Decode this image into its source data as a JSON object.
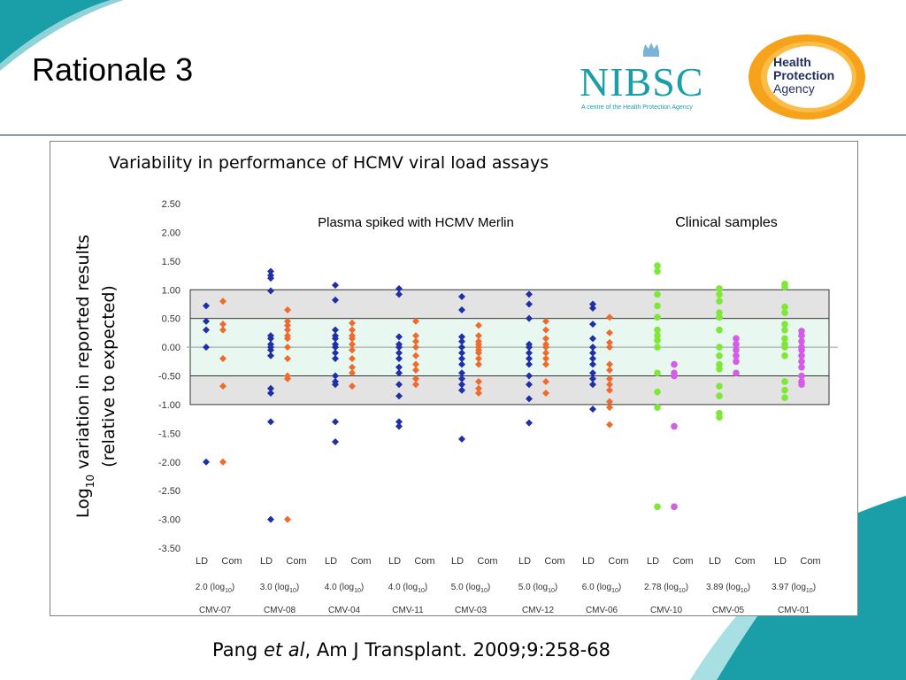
{
  "slide": {
    "title": "Rationale 3",
    "citation_author": "Pang ",
    "citation_etal": "et al",
    "citation_rest": ", Am J Transplant. 2009;9:258-68"
  },
  "logos": {
    "nibsc_text": "NIBSC",
    "nibsc_sub": "A centre of the Health Protection Agency",
    "hpa_line1": "Health",
    "hpa_line2": "Protection",
    "hpa_line3": "Agency"
  },
  "colors": {
    "header_rule": "#1f2d5c",
    "ld": "#1f2fa8",
    "com": "#ef6a2b",
    "clinical_ld": "#7de835",
    "clinical_com": "#d45ce6",
    "inner_band": "#e8f8f1",
    "outer_band": "#e3e3e3",
    "teal": "#1a9ea8",
    "hpa_orange": "#f7a21b"
  },
  "chart_data": {
    "type": "scatter",
    "title": "Variability in performance of HCMV viral load assays",
    "ylabel_main": "variation in reported results",
    "ylabel_log": "Log",
    "ylabel_sub": "10",
    "ylabel_line2": "(relative to expected)",
    "ylim": [
      -3.5,
      2.5
    ],
    "yticks": [
      "2.50",
      "2.00",
      "1.50",
      "1.00",
      "0.50",
      "0.00",
      "-0.50",
      "-1.00",
      "-1.50",
      "-2.00",
      "-2.50",
      "-3.00",
      "-3.50"
    ],
    "bands": {
      "outer": [
        -1.0,
        1.0
      ],
      "inner": [
        -0.5,
        0.5
      ]
    },
    "section_labels": [
      "Plasma spiked with HCMV Merlin",
      "Clinical samples"
    ],
    "sample_row_labels": [
      "LD",
      "Com"
    ],
    "groups": [
      {
        "name": "CMV-07",
        "level": "2.0",
        "type": "spiked",
        "LD": [
          0.72,
          0.45,
          0.3,
          0.0,
          -2.0
        ],
        "Com": [
          0.8,
          0.4,
          0.3,
          -0.2,
          -0.68,
          -2.0
        ]
      },
      {
        "name": "CMV-08",
        "level": "3.0",
        "type": "spiked",
        "LD": [
          1.32,
          1.25,
          1.2,
          0.98,
          0.2,
          0.15,
          0.05,
          0.0,
          -0.05,
          -0.15,
          -0.72,
          -0.8,
          -1.3,
          -3.0
        ],
        "Com": [
          0.65,
          0.45,
          0.38,
          0.3,
          0.2,
          0.15,
          0.0,
          -0.2,
          -0.5,
          -0.55,
          -3.0
        ]
      },
      {
        "name": "CMV-04",
        "level": "4.0",
        "type": "spiked",
        "LD": [
          1.08,
          0.82,
          0.3,
          0.2,
          0.15,
          0.05,
          0.0,
          -0.1,
          -0.2,
          -0.5,
          -0.6,
          -0.65,
          -1.3,
          -1.65
        ],
        "Com": [
          0.42,
          0.3,
          0.2,
          0.15,
          0.05,
          -0.05,
          -0.2,
          -0.35,
          -0.45,
          -0.68
        ]
      },
      {
        "name": "CMV-11",
        "level": "4.0",
        "type": "spiked",
        "LD": [
          1.02,
          0.92,
          0.18,
          0.05,
          0.0,
          -0.1,
          -0.2,
          -0.35,
          -0.45,
          -0.65,
          -0.85,
          -1.3,
          -1.38
        ],
        "Com": [
          0.45,
          0.2,
          0.1,
          0.0,
          -0.15,
          -0.3,
          -0.4,
          -0.55,
          -0.65
        ]
      },
      {
        "name": "CMV-03",
        "level": "5.0",
        "type": "spiked",
        "LD": [
          0.88,
          0.65,
          0.18,
          0.1,
          0.0,
          -0.1,
          -0.2,
          -0.3,
          -0.45,
          -0.55,
          -0.65,
          -0.75,
          -1.6
        ],
        "Com": [
          0.38,
          0.2,
          0.1,
          0.05,
          0.0,
          -0.05,
          -0.1,
          -0.2,
          -0.3,
          -0.6,
          -0.72,
          -0.8
        ]
      },
      {
        "name": "CMV-12",
        "level": "5.0",
        "type": "spiked",
        "LD": [
          0.92,
          0.75,
          0.5,
          0.05,
          0.0,
          -0.1,
          -0.2,
          -0.3,
          -0.5,
          -0.65,
          -0.9,
          -1.32
        ],
        "Com": [
          0.45,
          0.3,
          0.15,
          0.05,
          0.0,
          -0.1,
          -0.2,
          -0.3,
          -0.6,
          -0.8
        ]
      },
      {
        "name": "CMV-06",
        "level": "6.0",
        "type": "spiked",
        "LD": [
          0.75,
          0.68,
          0.4,
          0.15,
          0.0,
          -0.1,
          -0.2,
          -0.3,
          -0.45,
          -0.55,
          -0.65,
          -1.08
        ],
        "Com": [
          0.52,
          0.25,
          0.08,
          0.0,
          -0.3,
          -0.4,
          -0.55,
          -0.65,
          -0.75,
          -0.95,
          -1.05,
          -1.35
        ]
      },
      {
        "name": "CMV-10",
        "level": "2.78",
        "type": "clinical",
        "LD": [
          1.42,
          1.32,
          0.92,
          0.72,
          0.52,
          0.3,
          0.2,
          0.12,
          0.0,
          -0.45,
          -0.78,
          -1.05,
          -2.78
        ],
        "Com": [
          -0.3,
          -0.45,
          -0.5,
          -1.38,
          -2.78
        ]
      },
      {
        "name": "CMV-05",
        "level": "3.89",
        "type": "clinical",
        "LD": [
          1.02,
          0.92,
          0.8,
          0.6,
          0.52,
          0.3,
          0.0,
          -0.15,
          -0.3,
          -0.38,
          -0.68,
          -0.85,
          -1.15,
          -1.22
        ],
        "Com": [
          0.15,
          0.05,
          -0.05,
          -0.15,
          -0.25,
          -0.45
        ]
      },
      {
        "name": "CMV-01",
        "level": "3.97",
        "type": "clinical",
        "LD": [
          1.1,
          1.05,
          0.7,
          0.6,
          0.4,
          0.3,
          0.15,
          0.05,
          0.0,
          -0.15,
          -0.6,
          -0.75,
          -0.88
        ],
        "Com": [
          0.28,
          0.2,
          0.1,
          0.0,
          -0.05,
          -0.15,
          -0.25,
          -0.35,
          -0.5,
          -0.6,
          -0.65
        ]
      }
    ]
  }
}
